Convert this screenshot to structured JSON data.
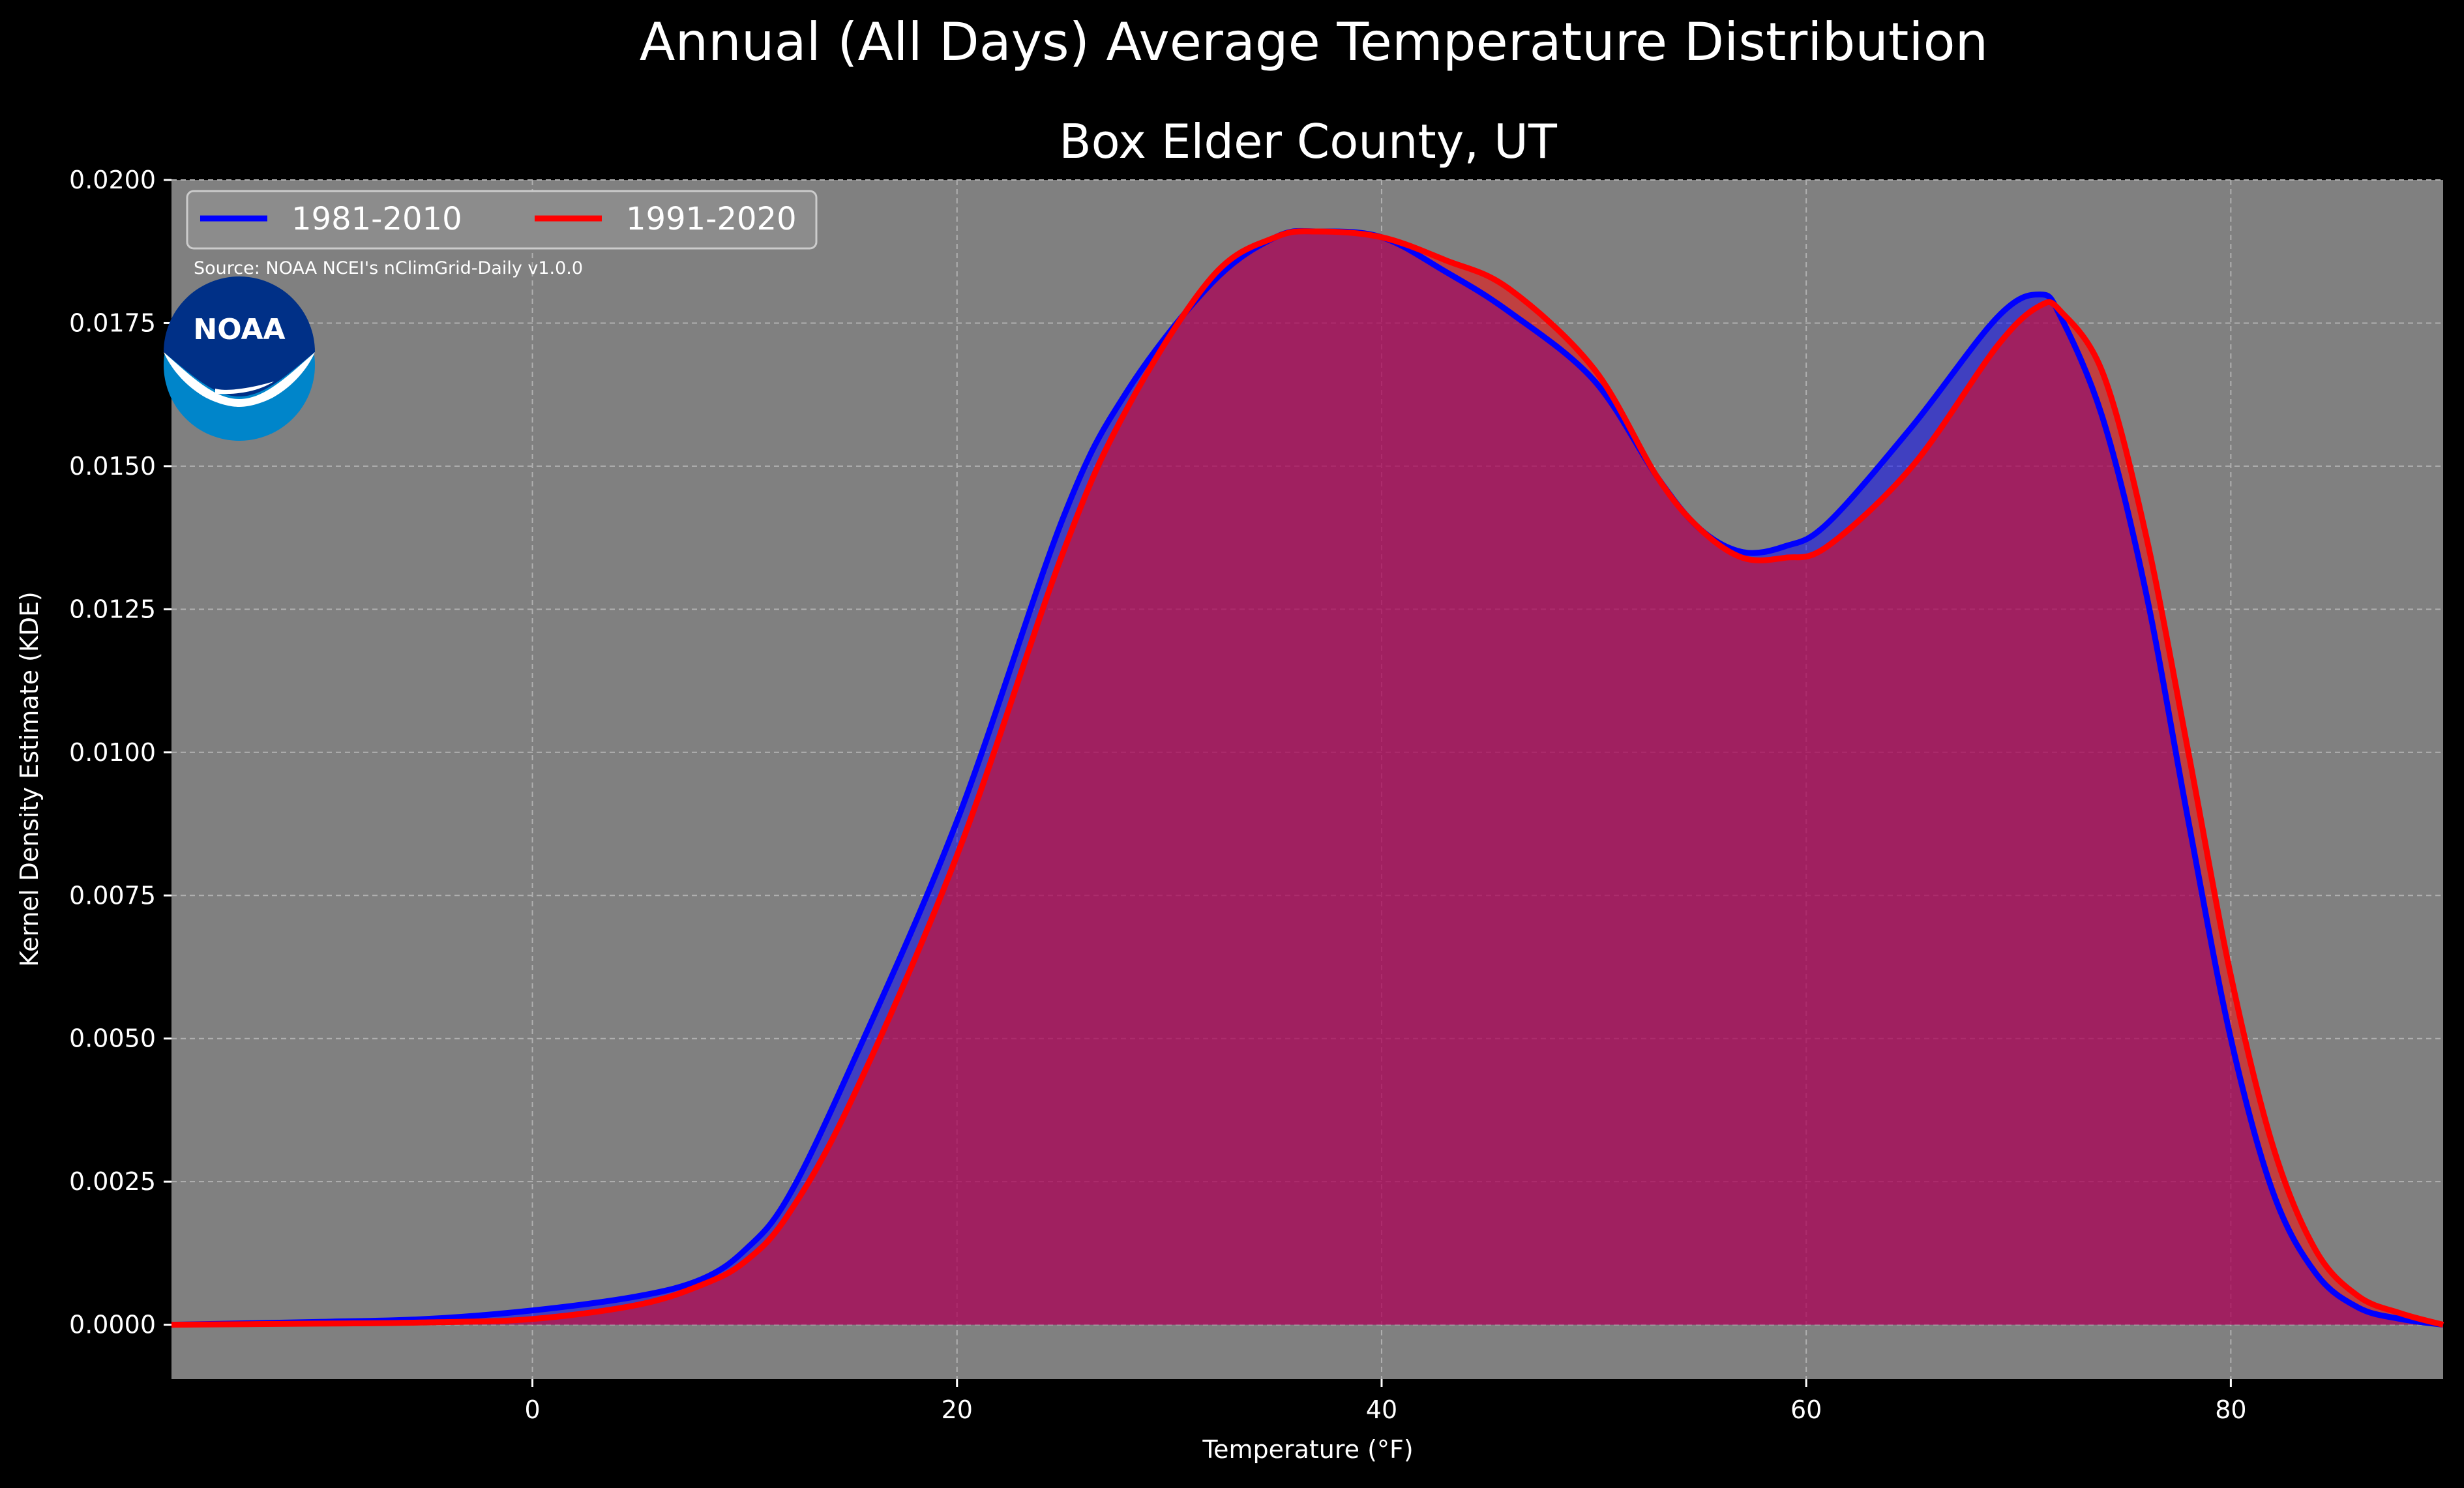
{
  "chart_data": {
    "type": "area",
    "title": "Annual (All Days) Average Temperature Distribution",
    "subtitle": "Box Elder County, UT",
    "xlabel": "Temperature (°F)",
    "ylabel": "Kernel Density Estimate (KDE)",
    "xlim": [
      -17,
      90
    ],
    "ylim": [
      -0.00095,
      0.02
    ],
    "xticks": [
      0,
      20,
      40,
      60,
      80
    ],
    "xtick_labels": [
      "0",
      "20",
      "40",
      "60",
      "80"
    ],
    "yticks": [
      0.0,
      0.0025,
      0.005,
      0.0075,
      0.01,
      0.0125,
      0.015,
      0.0175,
      0.02
    ],
    "ytick_labels": [
      "0.0000",
      "0.0025",
      "0.0050",
      "0.0075",
      "0.0100",
      "0.0125",
      "0.0150",
      "0.0175",
      "0.0200"
    ],
    "grid": true,
    "legend_position": "top-left",
    "source_note": "Source: NOAA NCEI's nClimGrid-Daily v1.0.0",
    "colors": {
      "background": "#000000",
      "plot_background": "#808080",
      "text": "#ffffff",
      "series_1981_2010": "#0000ff",
      "series_1991_2020": "#ff0000",
      "overlap_fill": "#9e1f5c"
    },
    "series": [
      {
        "name": "1981-2010",
        "color": "#0000ff",
        "x": [
          -17,
          -10,
          -5,
          0,
          5,
          8,
          10,
          12,
          15,
          20,
          25,
          28,
          32,
          35,
          37,
          40,
          43,
          46,
          50,
          53,
          55,
          57,
          59,
          61,
          65,
          69,
          71,
          72,
          74,
          76,
          78,
          80,
          82,
          84,
          86,
          88,
          90
        ],
        "y": [
          0.0,
          5e-05,
          0.0001,
          0.00025,
          0.0005,
          0.0008,
          0.0013,
          0.0022,
          0.0045,
          0.0088,
          0.0141,
          0.0163,
          0.0182,
          0.019,
          0.0191,
          0.019,
          0.0184,
          0.0177,
          0.0165,
          0.0148,
          0.0139,
          0.0135,
          0.0136,
          0.014,
          0.0157,
          0.0176,
          0.018,
          0.0176,
          0.0158,
          0.0128,
          0.0088,
          0.005,
          0.0023,
          0.0009,
          0.0003,
          0.0001,
          0.0
        ]
      },
      {
        "name": "1991-2020",
        "color": "#ff0000",
        "x": [
          -17,
          -10,
          -5,
          0,
          5,
          8,
          10,
          12,
          15,
          20,
          25,
          28,
          32,
          35,
          37,
          40,
          43,
          46,
          50,
          53,
          55,
          57,
          59,
          61,
          65,
          69,
          71,
          72,
          74,
          76,
          78,
          80,
          82,
          84,
          86,
          88,
          90
        ],
        "y": [
          0.0,
          2e-05,
          4e-05,
          0.0001,
          0.00035,
          0.0007,
          0.0011,
          0.0019,
          0.0039,
          0.0082,
          0.0135,
          0.016,
          0.0183,
          0.019,
          0.0191,
          0.019,
          0.0186,
          0.0181,
          0.0167,
          0.0148,
          0.0139,
          0.0134,
          0.0134,
          0.0136,
          0.015,
          0.0171,
          0.0178,
          0.0177,
          0.0166,
          0.0138,
          0.01,
          0.0061,
          0.0031,
          0.0013,
          0.0005,
          0.0002,
          0.0
        ]
      }
    ]
  },
  "logo": {
    "text": "NOAA"
  }
}
